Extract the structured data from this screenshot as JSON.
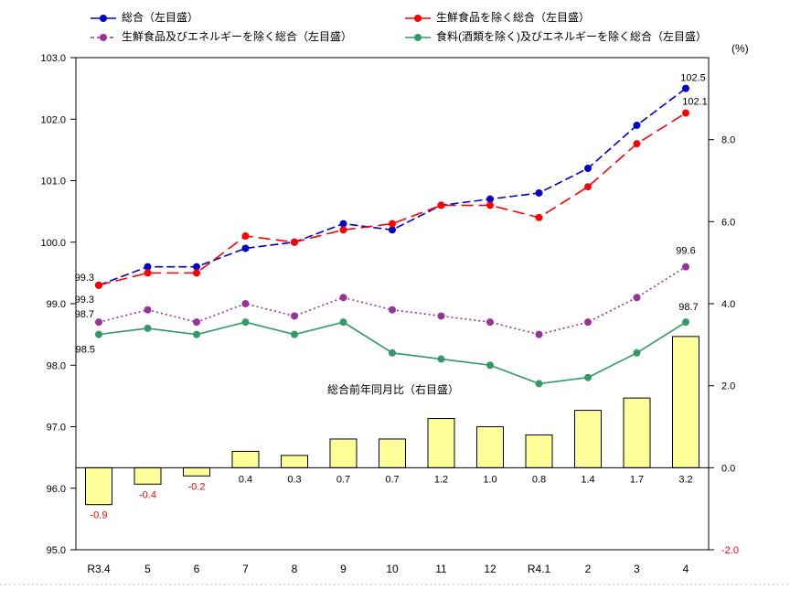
{
  "chart_data": {
    "type": "combo-line-bar",
    "categories": [
      "R3.4",
      "5",
      "6",
      "7",
      "8",
      "9",
      "10",
      "11",
      "12",
      "R4.1",
      "2",
      "3",
      "4"
    ],
    "left_axis": {
      "min": 95.0,
      "max": 103.0,
      "ticks": [
        {
          "label": "103.0",
          "value": 103.0
        },
        {
          "label": "102.0",
          "value": 102.0
        },
        {
          "label": "101.0",
          "value": 101.0
        },
        {
          "label": "100.0",
          "value": 100.0
        },
        {
          "label": "99.0",
          "value": 99.0
        },
        {
          "label": "98.0",
          "value": 98.0
        },
        {
          "label": "97.0",
          "value": 97.0
        },
        {
          "label": "96.0",
          "value": 96.0
        },
        {
          "label": "95.0",
          "value": 95.0
        }
      ]
    },
    "right_axis": {
      "min": -2.0,
      "max": 10.0,
      "unit": "(%)",
      "ticks": [
        {
          "label": "8.0",
          "value": 8.0,
          "color": "#000000"
        },
        {
          "label": "6.0",
          "value": 6.0,
          "color": "#000000"
        },
        {
          "label": "4.0",
          "value": 4.0,
          "color": "#000000"
        },
        {
          "label": "2.0",
          "value": 2.0,
          "color": "#000000"
        },
        {
          "label": "0.0",
          "value": 0.0,
          "color": "#000000"
        },
        {
          "label": "-2.0",
          "value": -2.0,
          "color": "#ff0000"
        }
      ]
    },
    "line_series": [
      {
        "name": "総合（左目盛）",
        "color": "#0000cc",
        "dash": "9,4",
        "legend_dash": "",
        "values": [
          99.3,
          99.6,
          99.6,
          99.9,
          100.0,
          100.3,
          100.2,
          100.6,
          100.7,
          100.8,
          101.2,
          101.9,
          102.5
        ],
        "first_label": "99.3",
        "last_label": "102.5"
      },
      {
        "name": "生鮮食品を除く総合（左目盛）",
        "color": "#ff0000",
        "dash": "13,6",
        "legend_dash": "",
        "values": [
          99.3,
          99.5,
          99.5,
          100.1,
          100.0,
          100.2,
          100.3,
          100.6,
          100.6,
          100.4,
          100.9,
          101.6,
          102.1
        ],
        "first_label": "99.3",
        "last_label": "102.1"
      },
      {
        "name": "生鮮食品及びエネルギーを除く総合（左目盛）",
        "color": "#993399",
        "dash": "2,3",
        "legend_dash": "4,3",
        "values": [
          98.7,
          98.9,
          98.7,
          99.0,
          98.8,
          99.1,
          98.9,
          98.8,
          98.7,
          98.5,
          98.7,
          99.1,
          99.6
        ],
        "first_label": "98.7",
        "last_label": "99.6"
      },
      {
        "name": "食料(酒類を除く)及びエネルギーを除く総合（左目盛）",
        "color": "#339966",
        "dash": "",
        "legend_dash": "",
        "values": [
          98.5,
          98.6,
          98.5,
          98.7,
          98.5,
          98.7,
          98.2,
          98.1,
          98.0,
          97.7,
          97.8,
          98.2,
          98.7
        ],
        "first_label": "98.5",
        "last_label": "98.7"
      }
    ],
    "bar_series": {
      "name": "総合前年同月比（右目盛）",
      "fill": "#ffff99",
      "border": "#000000",
      "values": [
        -0.9,
        -0.4,
        -0.2,
        0.4,
        0.3,
        0.7,
        0.7,
        1.2,
        1.0,
        0.8,
        1.4,
        1.7,
        3.2
      ],
      "labels": [
        "-0.9",
        "-0.4",
        "-0.2",
        "0.4",
        "0.3",
        "0.7",
        "0.7",
        "1.2",
        "1.0",
        "0.8",
        "1.4",
        "1.7",
        "3.2"
      ],
      "positive_label_color": "#000000",
      "negative_label_color": "#ff0000"
    }
  }
}
